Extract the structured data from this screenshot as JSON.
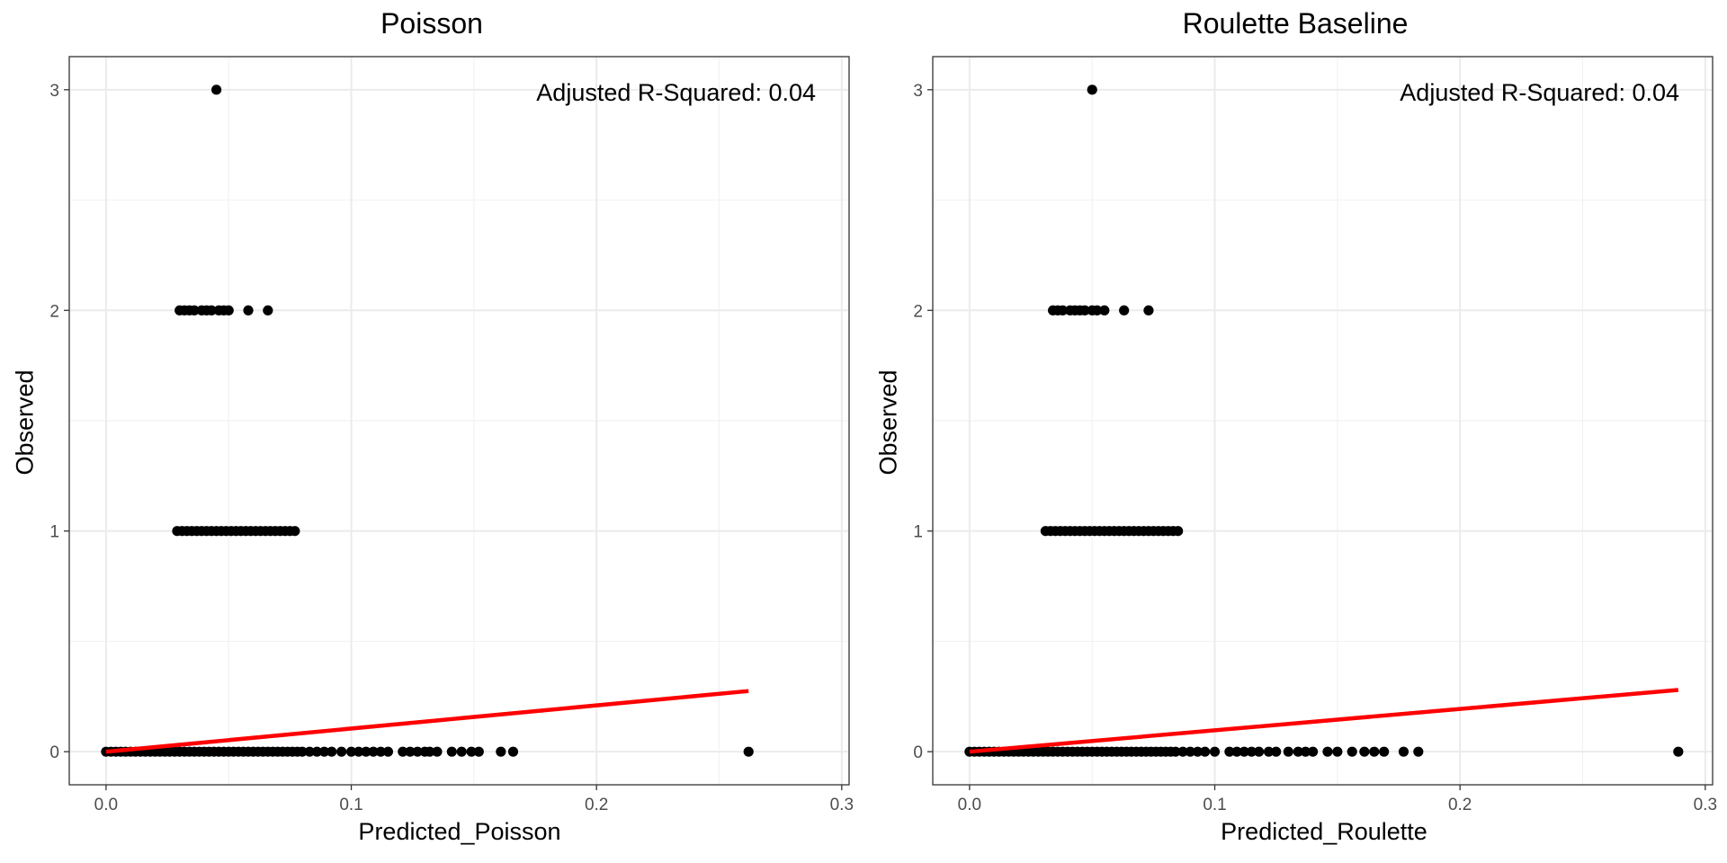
{
  "chart_data": [
    {
      "type": "scatter",
      "title": "Poisson",
      "xlabel": "Predicted_Poisson",
      "ylabel": "Observed",
      "xlim": [
        -0.015,
        0.303
      ],
      "ylim": [
        -0.15,
        3.15
      ],
      "xticks": [
        0.0,
        0.1,
        0.2,
        0.3
      ],
      "xtick_labels": [
        "0.0",
        "0.1",
        "0.2",
        "0.3"
      ],
      "yticks": [
        0,
        1,
        2,
        3
      ],
      "ytick_labels": [
        "0",
        "1",
        "2",
        "3"
      ],
      "grid": true,
      "annotation": "Adjusted R-Squared: 0.04",
      "series": [
        {
          "kind": "points",
          "color": "#000000",
          "x": [
            0.0,
            0.002,
            0.004,
            0.006,
            0.008,
            0.01,
            0.012,
            0.014,
            0.016,
            0.018,
            0.02,
            0.022,
            0.024,
            0.026,
            0.028,
            0.03,
            0.032,
            0.034,
            0.036,
            0.038,
            0.04,
            0.042,
            0.044,
            0.046,
            0.048,
            0.05,
            0.052,
            0.054,
            0.056,
            0.058,
            0.06,
            0.062,
            0.064,
            0.066,
            0.068,
            0.07,
            0.072,
            0.074,
            0.076,
            0.078,
            0.08,
            0.083,
            0.086,
            0.089,
            0.092,
            0.096,
            0.1,
            0.103,
            0.106,
            0.109,
            0.112,
            0.115,
            0.121,
            0.124,
            0.127,
            0.13,
            0.132,
            0.135,
            0.141,
            0.145,
            0.149,
            0.152,
            0.161,
            0.166,
            0.262,
            0.029,
            0.031,
            0.033,
            0.035,
            0.037,
            0.039,
            0.041,
            0.043,
            0.045,
            0.047,
            0.049,
            0.051,
            0.053,
            0.055,
            0.057,
            0.059,
            0.061,
            0.063,
            0.065,
            0.067,
            0.069,
            0.071,
            0.073,
            0.075,
            0.077,
            0.03,
            0.032,
            0.034,
            0.036,
            0.039,
            0.041,
            0.043,
            0.046,
            0.048,
            0.05,
            0.058,
            0.066,
            0.045
          ],
          "y": [
            0,
            0,
            0,
            0,
            0,
            0,
            0,
            0,
            0,
            0,
            0,
            0,
            0,
            0,
            0,
            0,
            0,
            0,
            0,
            0,
            0,
            0,
            0,
            0,
            0,
            0,
            0,
            0,
            0,
            0,
            0,
            0,
            0,
            0,
            0,
            0,
            0,
            0,
            0,
            0,
            0,
            0,
            0,
            0,
            0,
            0,
            0,
            0,
            0,
            0,
            0,
            0,
            0,
            0,
            0,
            0,
            0,
            0,
            0,
            0,
            0,
            0,
            0,
            0,
            0,
            1,
            1,
            1,
            1,
            1,
            1,
            1,
            1,
            1,
            1,
            1,
            1,
            1,
            1,
            1,
            1,
            1,
            1,
            1,
            1,
            1,
            1,
            1,
            1,
            1,
            2,
            2,
            2,
            2,
            2,
            2,
            2,
            2,
            2,
            2,
            2,
            2,
            3
          ]
        },
        {
          "kind": "fit-line",
          "color": "#ff0000",
          "x": [
            0.0,
            0.262
          ],
          "y": [
            0.0,
            0.275
          ]
        }
      ]
    },
    {
      "type": "scatter",
      "title": "Roulette Baseline",
      "xlabel": "Predicted_Roulette",
      "ylabel": "Observed",
      "xlim": [
        -0.015,
        0.303
      ],
      "ylim": [
        -0.15,
        3.15
      ],
      "xticks": [
        0.0,
        0.1,
        0.2,
        0.3
      ],
      "xtick_labels": [
        "0.0",
        "0.1",
        "0.2",
        "0.3"
      ],
      "yticks": [
        0,
        1,
        2,
        3
      ],
      "ytick_labels": [
        "0",
        "1",
        "2",
        "3"
      ],
      "grid": true,
      "annotation": "Adjusted R-Squared: 0.04",
      "series": [
        {
          "kind": "points",
          "color": "#000000",
          "x": [
            0.0,
            0.002,
            0.004,
            0.006,
            0.008,
            0.01,
            0.012,
            0.014,
            0.016,
            0.018,
            0.02,
            0.022,
            0.024,
            0.026,
            0.028,
            0.03,
            0.032,
            0.034,
            0.036,
            0.038,
            0.04,
            0.042,
            0.044,
            0.046,
            0.048,
            0.05,
            0.052,
            0.054,
            0.056,
            0.058,
            0.06,
            0.062,
            0.064,
            0.066,
            0.068,
            0.07,
            0.072,
            0.074,
            0.076,
            0.078,
            0.08,
            0.082,
            0.084,
            0.087,
            0.09,
            0.093,
            0.096,
            0.1,
            0.106,
            0.109,
            0.112,
            0.115,
            0.118,
            0.122,
            0.125,
            0.13,
            0.134,
            0.137,
            0.14,
            0.146,
            0.15,
            0.156,
            0.161,
            0.165,
            0.169,
            0.177,
            0.183,
            0.289,
            0.031,
            0.033,
            0.035,
            0.037,
            0.039,
            0.041,
            0.043,
            0.045,
            0.047,
            0.049,
            0.051,
            0.053,
            0.055,
            0.057,
            0.059,
            0.061,
            0.063,
            0.065,
            0.067,
            0.069,
            0.071,
            0.073,
            0.075,
            0.077,
            0.079,
            0.081,
            0.083,
            0.085,
            0.034,
            0.036,
            0.038,
            0.041,
            0.043,
            0.045,
            0.047,
            0.05,
            0.052,
            0.055,
            0.063,
            0.073,
            0.05
          ],
          "y": [
            0,
            0,
            0,
            0,
            0,
            0,
            0,
            0,
            0,
            0,
            0,
            0,
            0,
            0,
            0,
            0,
            0,
            0,
            0,
            0,
            0,
            0,
            0,
            0,
            0,
            0,
            0,
            0,
            0,
            0,
            0,
            0,
            0,
            0,
            0,
            0,
            0,
            0,
            0,
            0,
            0,
            0,
            0,
            0,
            0,
            0,
            0,
            0,
            0,
            0,
            0,
            0,
            0,
            0,
            0,
            0,
            0,
            0,
            0,
            0,
            0,
            0,
            0,
            0,
            0,
            0,
            0,
            0,
            1,
            1,
            1,
            1,
            1,
            1,
            1,
            1,
            1,
            1,
            1,
            1,
            1,
            1,
            1,
            1,
            1,
            1,
            1,
            1,
            1,
            1,
            1,
            1,
            1,
            1,
            1,
            1,
            2,
            2,
            2,
            2,
            2,
            2,
            2,
            2,
            2,
            2,
            2,
            2,
            3
          ]
        },
        {
          "kind": "fit-line",
          "color": "#ff0000",
          "x": [
            0.0,
            0.289
          ],
          "y": [
            0.0,
            0.28
          ]
        }
      ]
    }
  ]
}
